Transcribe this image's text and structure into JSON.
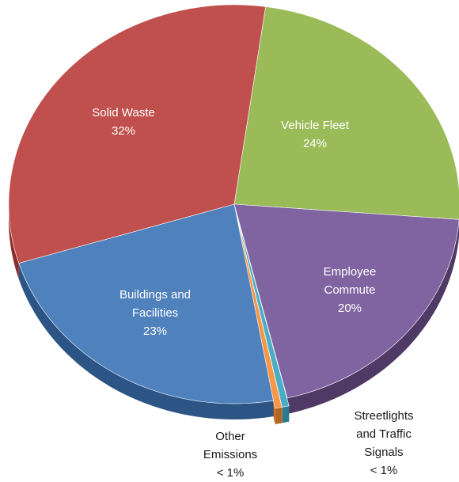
{
  "chart_data": {
    "type": "pie",
    "style": "3d-tilted",
    "title": "",
    "legend": "none",
    "slices": [
      {
        "label_lines": [
          "Vehicle Fleet"
        ],
        "value_label": "24%",
        "value": 24,
        "color": "#9bbb59",
        "side_color": "#6f8a3c"
      },
      {
        "label_lines": [
          "Employee",
          "Commute"
        ],
        "value_label": "20%",
        "value": 20,
        "color": "#8064a2",
        "side_color": "#4f3a66"
      },
      {
        "label_lines": [
          "Streetlights",
          "and Traffic",
          "Signals"
        ],
        "value_label": "< 1%",
        "value": 0.5,
        "color": "#4bacc6",
        "side_color": "#2d7a8f",
        "exploded": true
      },
      {
        "label_lines": [
          "Other",
          "Emissions"
        ],
        "value_label": "< 1%",
        "value": 0.5,
        "color": "#f79646",
        "side_color": "#b5651f",
        "exploded": true
      },
      {
        "label_lines": [
          "Buildings and",
          "Facilities"
        ],
        "value_label": "23%",
        "value": 23,
        "color": "#4f81bd",
        "side_color": "#2c5485"
      },
      {
        "label_lines": [
          "Solid Waste"
        ],
        "value_label": "32%",
        "value": 32,
        "color": "#c0504d",
        "side_color": "#8c2e2b"
      }
    ]
  }
}
